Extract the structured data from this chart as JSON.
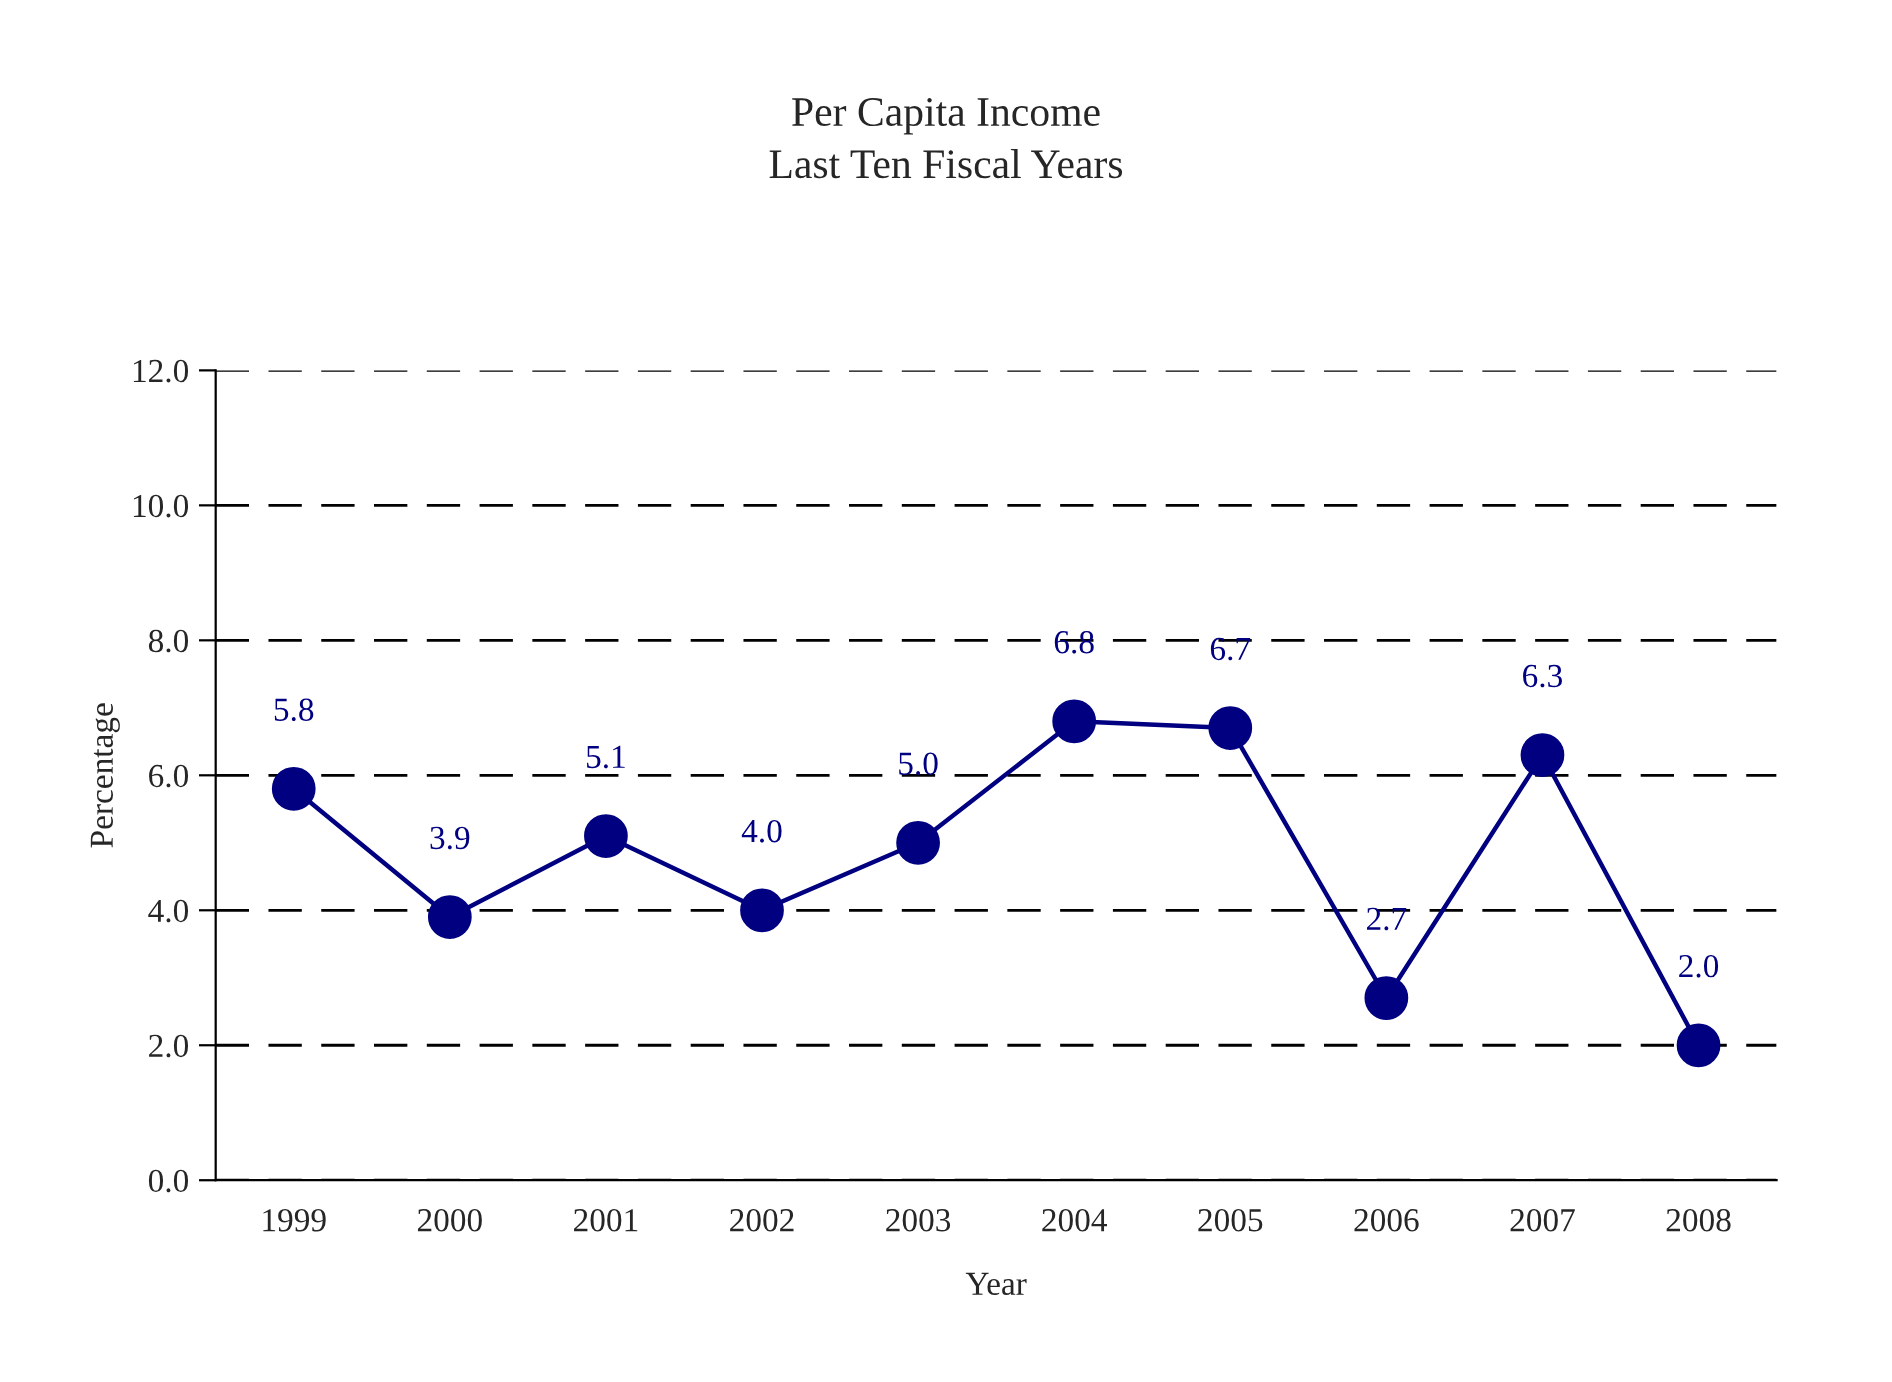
{
  "chart_data": {
    "type": "line",
    "title": "Per Capita Income\nLast Ten Fiscal Years",
    "xlabel": "Year",
    "ylabel": "Percentage",
    "categories": [
      "1999",
      "2000",
      "2001",
      "2002",
      "2003",
      "2004",
      "2005",
      "2006",
      "2007",
      "2008"
    ],
    "series": [
      {
        "color": "#000080",
        "values": [
          5.8,
          3.9,
          5.1,
          4.0,
          5.0,
          6.8,
          6.7,
          2.7,
          6.3,
          2.0
        ]
      }
    ],
    "value_labels": [
      "5.8",
      "3.9",
      "5.1",
      "4.0",
      "5.0",
      "6.8",
      "6.7",
      "2.7",
      "6.3",
      "2.0"
    ],
    "ylim": [
      0,
      12
    ],
    "yticks": [
      {
        "value": 0,
        "label": "0.0"
      },
      {
        "value": 2,
        "label": "2.0"
      },
      {
        "value": 4,
        "label": "4.0"
      },
      {
        "value": 6,
        "label": "6.0"
      },
      {
        "value": 8,
        "label": "8.0"
      },
      {
        "value": 10,
        "label": "10.0"
      },
      {
        "value": 12,
        "label": "12.0"
      }
    ],
    "grid": "y",
    "legend": false,
    "marker": "circle",
    "line_style": "solid"
  }
}
